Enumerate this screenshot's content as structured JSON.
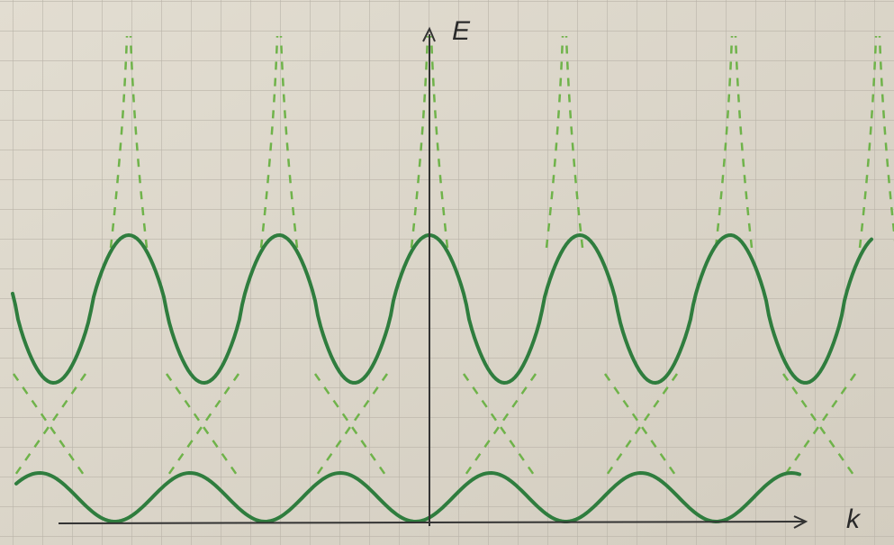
{
  "axes": {
    "y_label": "E",
    "x_label": "k"
  }
}
